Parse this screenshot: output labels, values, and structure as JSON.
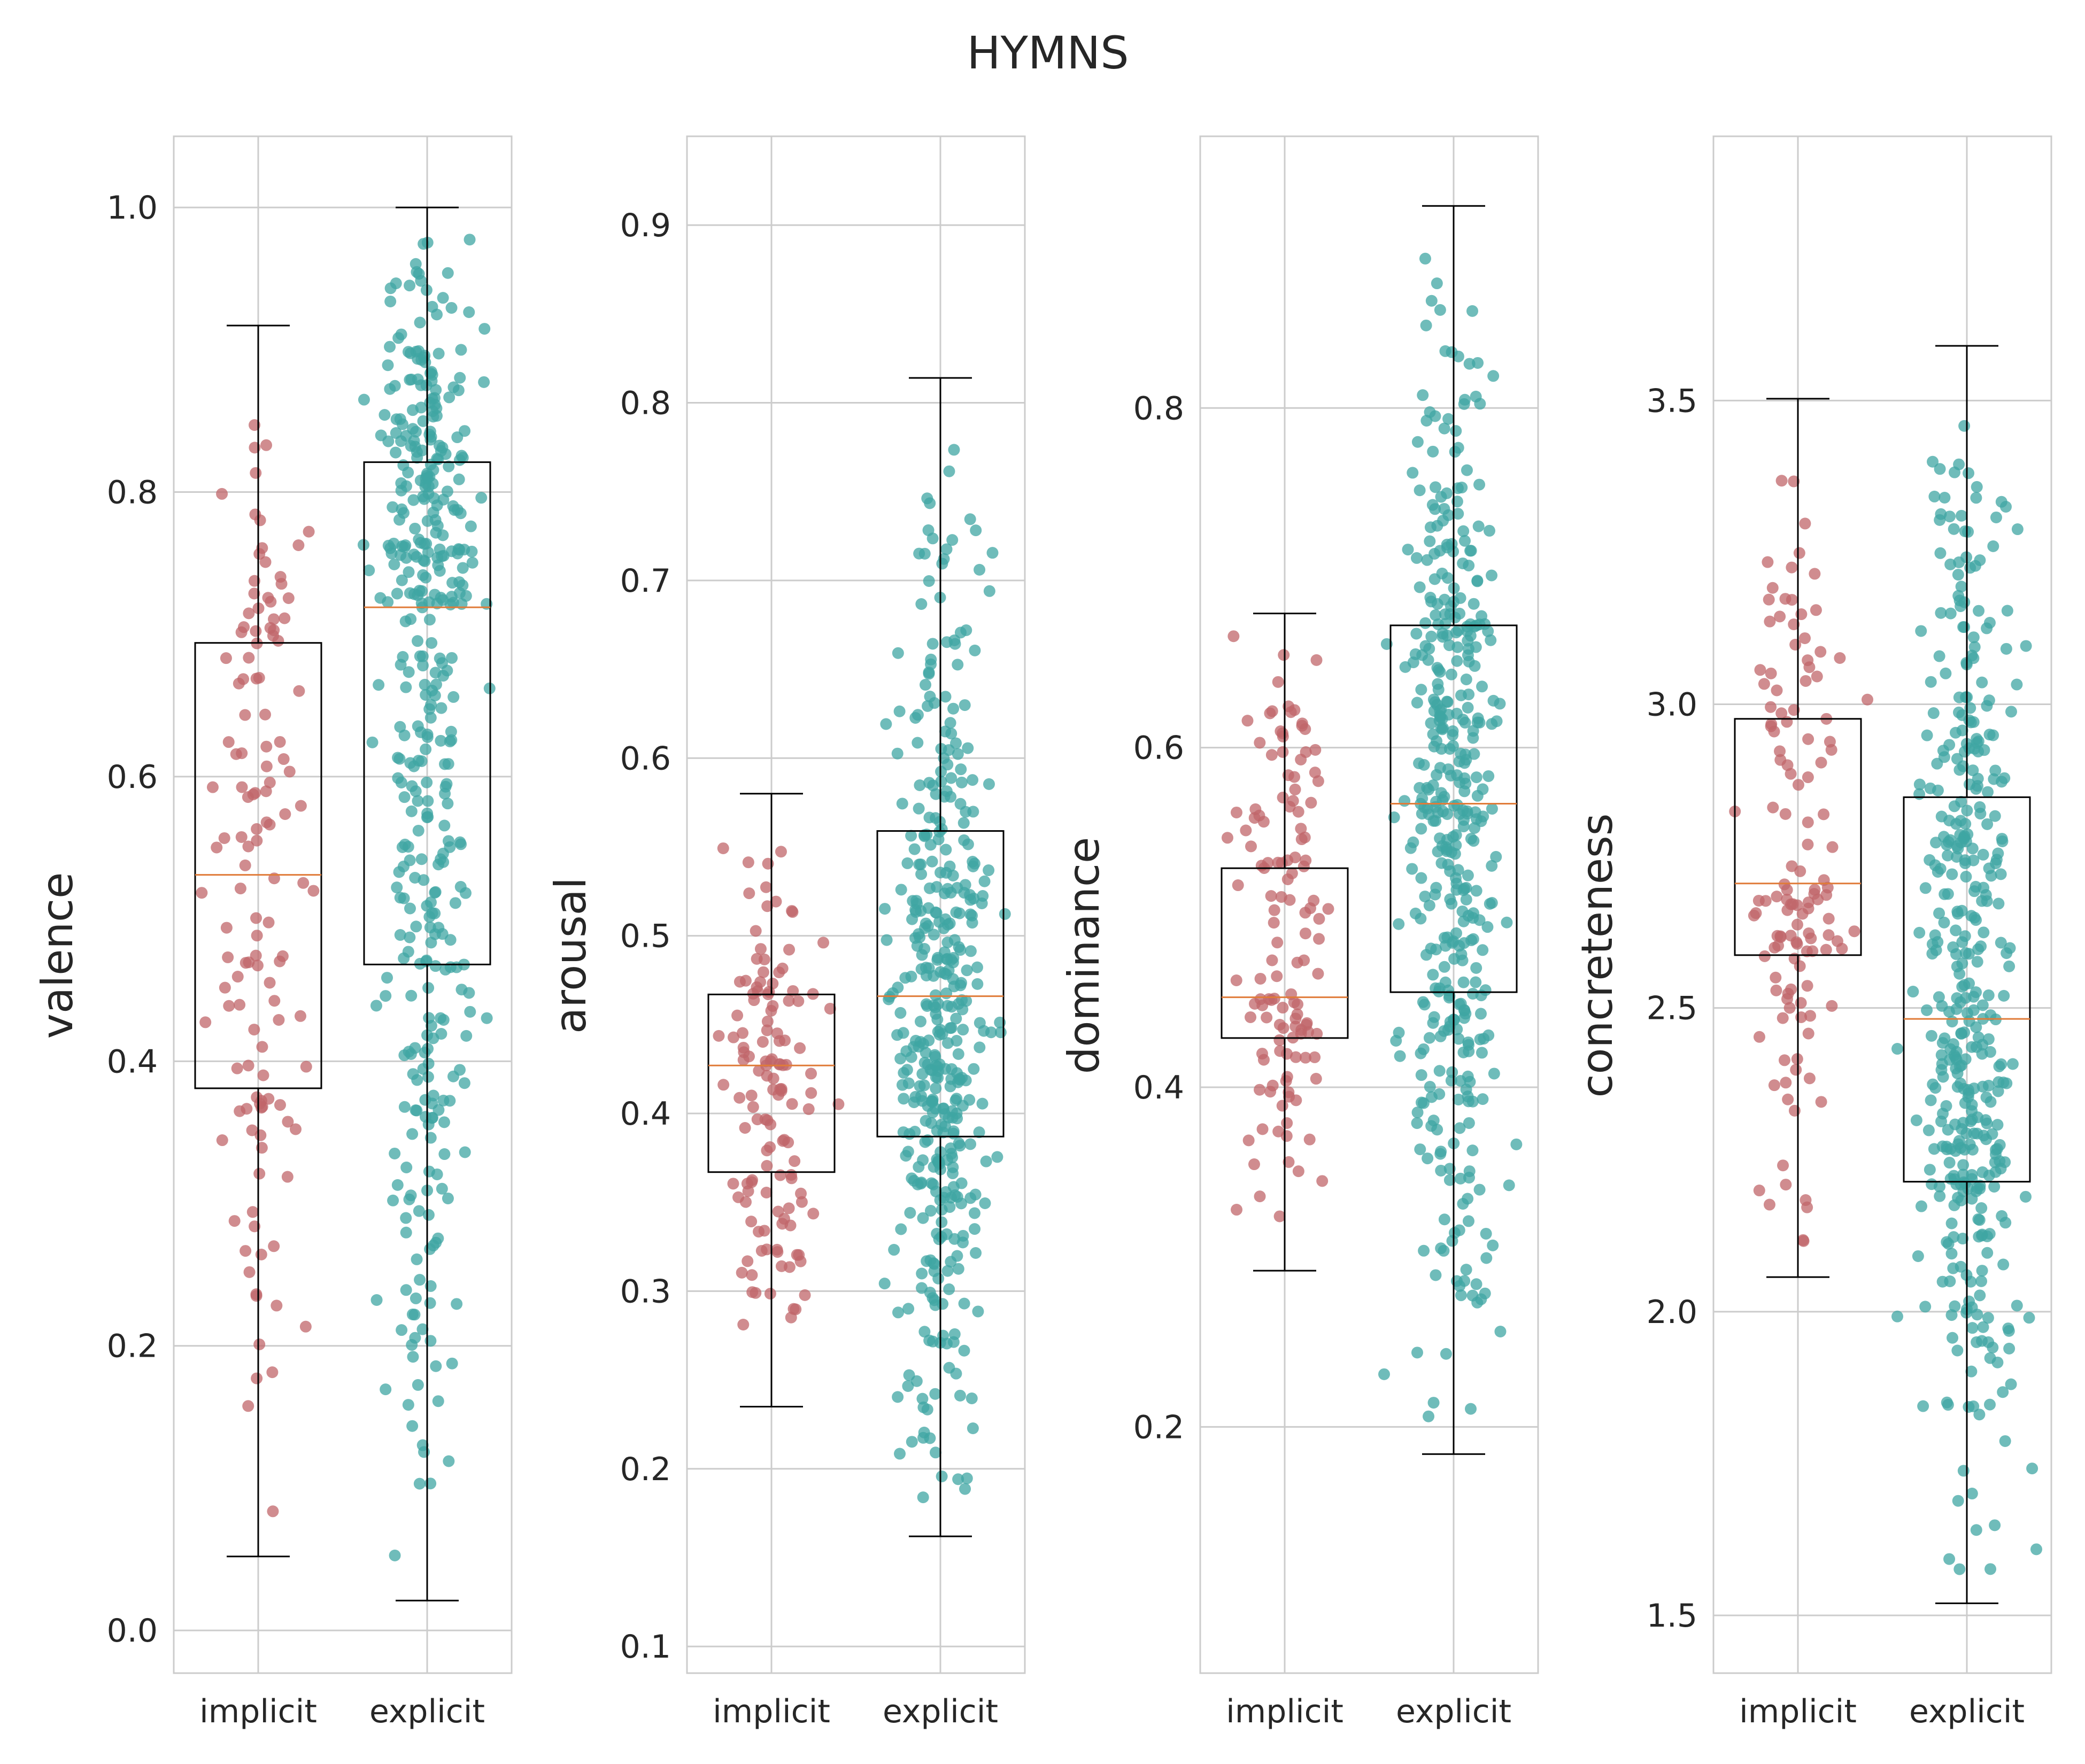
{
  "title": "HYMNS",
  "colors": {
    "implicit": "#c0666a",
    "explicit": "#3fa6a3",
    "median": "#e07b39",
    "box": "#000000",
    "grid": "#cccccc",
    "spine": "#cccccc"
  },
  "chart_data": [
    {
      "type": "box",
      "ylabel": "valence",
      "categories": [
        "implicit",
        "explicit"
      ],
      "ylim": [
        -0.03,
        1.05
      ],
      "yticks": [
        0.0,
        0.2,
        0.4,
        0.6,
        0.8,
        1.0
      ],
      "ytick_labels": [
        "0.0",
        "0.2",
        "0.4",
        "0.6",
        "0.8",
        "1.0"
      ],
      "grid": true,
      "series": [
        {
          "category": "implicit",
          "whisker_low": 0.052,
          "q1": 0.381,
          "median": 0.531,
          "q3": 0.694,
          "whisker_high": 0.917,
          "n_points": 130
        },
        {
          "category": "explicit",
          "whisker_low": 0.021,
          "q1": 0.468,
          "median": 0.719,
          "q3": 0.821,
          "whisker_high": 1.0,
          "n_points": 420
        }
      ]
    },
    {
      "type": "box",
      "ylabel": "arousal",
      "categories": [
        "implicit",
        "explicit"
      ],
      "ylim": [
        0.085,
        0.95
      ],
      "yticks": [
        0.1,
        0.2,
        0.3,
        0.4,
        0.5,
        0.6,
        0.7,
        0.8,
        0.9
      ],
      "ytick_labels": [
        "0.1",
        "0.2",
        "0.3",
        "0.4",
        "0.5",
        "0.6",
        "0.7",
        "0.8",
        "0.9"
      ],
      "grid": true,
      "series": [
        {
          "category": "implicit",
          "whisker_low": 0.235,
          "q1": 0.367,
          "median": 0.427,
          "q3": 0.467,
          "whisker_high": 0.58,
          "n_points": 130
        },
        {
          "category": "explicit",
          "whisker_low": 0.162,
          "q1": 0.387,
          "median": 0.466,
          "q3": 0.559,
          "whisker_high": 0.814,
          "n_points": 420
        }
      ]
    },
    {
      "type": "box",
      "ylabel": "dominance",
      "categories": [
        "implicit",
        "explicit"
      ],
      "ylim": [
        0.055,
        0.96
      ],
      "yticks": [
        0.2,
        0.4,
        0.6,
        0.8
      ],
      "ytick_labels": [
        "0.2",
        "0.4",
        "0.6",
        "0.8"
      ],
      "grid": true,
      "series": [
        {
          "category": "implicit",
          "whisker_low": 0.292,
          "q1": 0.429,
          "median": 0.453,
          "q3": 0.529,
          "whisker_high": 0.679,
          "n_points": 130
        },
        {
          "category": "explicit",
          "whisker_low": 0.184,
          "q1": 0.456,
          "median": 0.567,
          "q3": 0.672,
          "whisker_high": 0.919,
          "n_points": 420
        }
      ]
    },
    {
      "type": "box",
      "ylabel": "concreteness",
      "categories": [
        "implicit",
        "explicit"
      ],
      "ylim": [
        1.405,
        3.935
      ],
      "yticks": [
        1.5,
        2.0,
        2.5,
        3.0,
        3.5
      ],
      "ytick_labels": [
        "1.5",
        "2.0",
        "2.5",
        "3.0",
        "3.5"
      ],
      "grid": true,
      "series": [
        {
          "category": "implicit",
          "whisker_low": 2.057,
          "q1": 2.587,
          "median": 2.705,
          "q3": 2.976,
          "whisker_high": 3.503,
          "n_points": 130
        },
        {
          "category": "explicit",
          "whisker_low": 1.52,
          "q1": 2.214,
          "median": 2.482,
          "q3": 2.847,
          "whisker_high": 3.59,
          "n_points": 420
        }
      ]
    }
  ]
}
